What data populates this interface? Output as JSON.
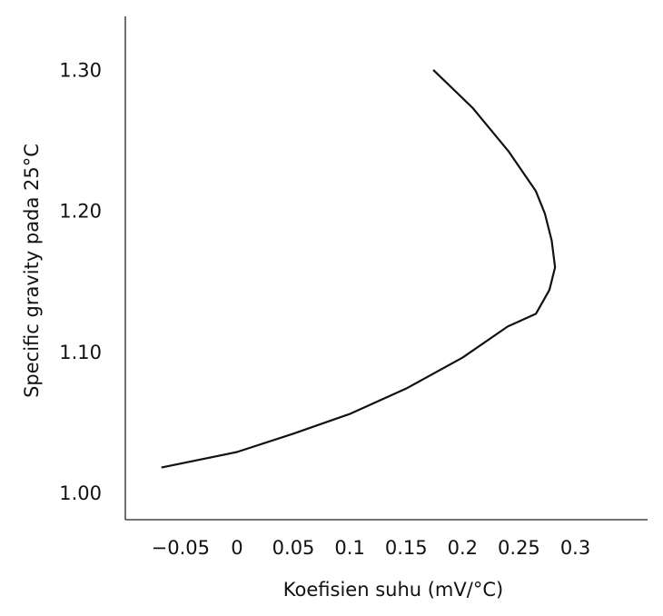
{
  "chart_data": {
    "type": "line",
    "x_label": "Koefisien suhu (mV/°C)",
    "y_label": "Specific gravity pada 25°C",
    "xlim": [
      -0.099,
      0.364
    ],
    "ylim": [
      0.982,
      1.339
    ],
    "xticks": [
      {
        "value": -0.05,
        "label": "−0.05"
      },
      0,
      0.05,
      0.1,
      0.15,
      0.2,
      0.25,
      0.3
    ],
    "yticks": [
      {
        "value": 1.0,
        "label": "1.00"
      },
      {
        "value": 1.1,
        "label": "1.10"
      },
      {
        "value": 1.2,
        "label": "1.20"
      },
      {
        "value": 1.3,
        "label": "1.30"
      }
    ],
    "grid": false,
    "series": [
      {
        "color": "#111111",
        "x": [
          -0.067,
          0,
          0.05,
          0.1,
          0.15,
          0.2,
          0.24,
          0.265,
          0.277,
          0.282,
          0.279,
          0.273,
          0.265,
          0.241,
          0.209,
          0.174
        ],
        "values": [
          1.019,
          1.03,
          1.043,
          1.057,
          1.075,
          1.097,
          1.119,
          1.128,
          1.145,
          1.161,
          1.18,
          1.199,
          1.215,
          1.243,
          1.274,
          1.301
        ]
      }
    ]
  }
}
